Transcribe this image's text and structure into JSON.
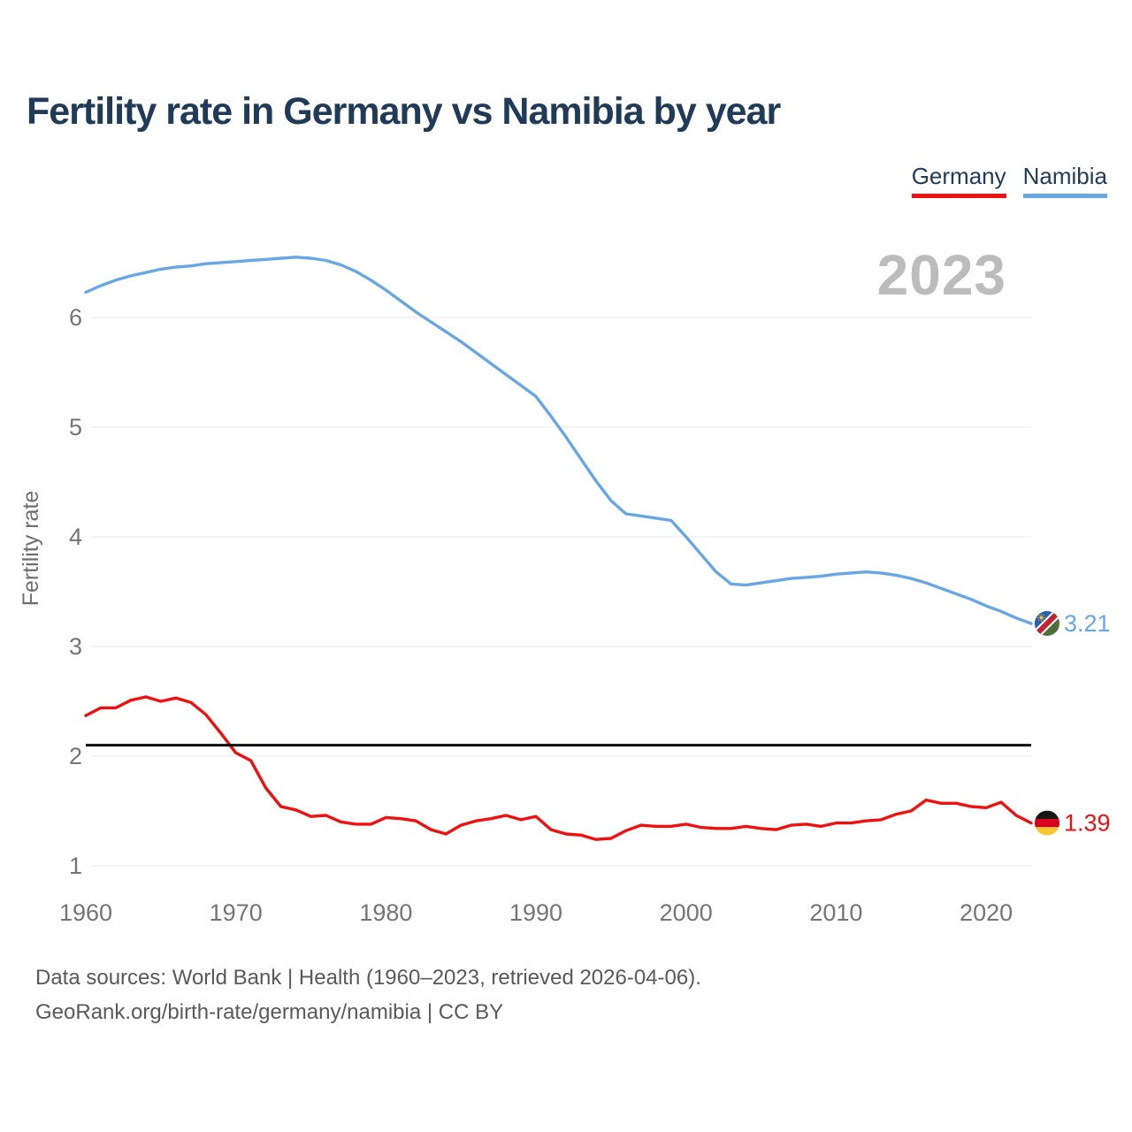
{
  "header": {
    "title": "Fertility rate in Germany vs Namibia by year"
  },
  "legend": [
    {
      "label": "Germany",
      "color": "#ef1010"
    },
    {
      "label": "Namibia",
      "color": "#68a7e6"
    }
  ],
  "watermark": "2023",
  "chart_data": {
    "type": "line",
    "title": "Fertility rate in Germany vs Namibia by year",
    "xlabel": "",
    "ylabel": "Fertility rate",
    "x_ticks": [
      1960,
      1970,
      1980,
      1990,
      2000,
      2010,
      2020
    ],
    "y_ticks": [
      1,
      2,
      3,
      4,
      5,
      6
    ],
    "xlim": [
      1960,
      2023
    ],
    "ylim": [
      1,
      6.6
    ],
    "grid": "horizontal",
    "legend_position": "top-right",
    "start_year": 1960,
    "end_year": 2023,
    "reference_line": {
      "value": 2.1,
      "color": "#0c0c0c"
    },
    "series": [
      {
        "name": "Germany",
        "color": "#ef1010",
        "end_label": "1.39",
        "values": [
          2.37,
          2.44,
          2.44,
          2.51,
          2.54,
          2.5,
          2.53,
          2.49,
          2.38,
          2.21,
          2.03,
          1.96,
          1.71,
          1.54,
          1.51,
          1.45,
          1.46,
          1.4,
          1.38,
          1.38,
          1.44,
          1.43,
          1.41,
          1.33,
          1.29,
          1.37,
          1.41,
          1.43,
          1.46,
          1.42,
          1.45,
          1.33,
          1.29,
          1.28,
          1.24,
          1.25,
          1.32,
          1.37,
          1.36,
          1.36,
          1.38,
          1.35,
          1.34,
          1.34,
          1.36,
          1.34,
          1.33,
          1.37,
          1.38,
          1.36,
          1.39,
          1.39,
          1.41,
          1.42,
          1.47,
          1.5,
          1.6,
          1.57,
          1.57,
          1.54,
          1.53,
          1.58,
          1.46,
          1.39
        ]
      },
      {
        "name": "Namibia",
        "color": "#68a7e6",
        "end_label": "3.21",
        "values": [
          6.23,
          6.29,
          6.34,
          6.38,
          6.41,
          6.44,
          6.46,
          6.47,
          6.49,
          6.5,
          6.51,
          6.52,
          6.53,
          6.54,
          6.55,
          6.54,
          6.52,
          6.48,
          6.42,
          6.34,
          6.25,
          6.15,
          6.05,
          5.96,
          5.87,
          5.78,
          5.68,
          5.58,
          5.48,
          5.38,
          5.28,
          5.1,
          4.91,
          4.71,
          4.51,
          4.33,
          4.21,
          4.19,
          4.17,
          4.15,
          4.0,
          3.84,
          3.68,
          3.57,
          3.56,
          3.58,
          3.6,
          3.62,
          3.63,
          3.64,
          3.66,
          3.67,
          3.68,
          3.67,
          3.65,
          3.62,
          3.58,
          3.53,
          3.48,
          3.43,
          3.37,
          3.32,
          3.26,
          3.21
        ]
      }
    ]
  },
  "footer": {
    "line1": "Data sources: World Bank | Health (1960–2023, retrieved 2026-04-06).",
    "line2": "GeoRank.org/birth-rate/germany/namibia | CC BY"
  }
}
